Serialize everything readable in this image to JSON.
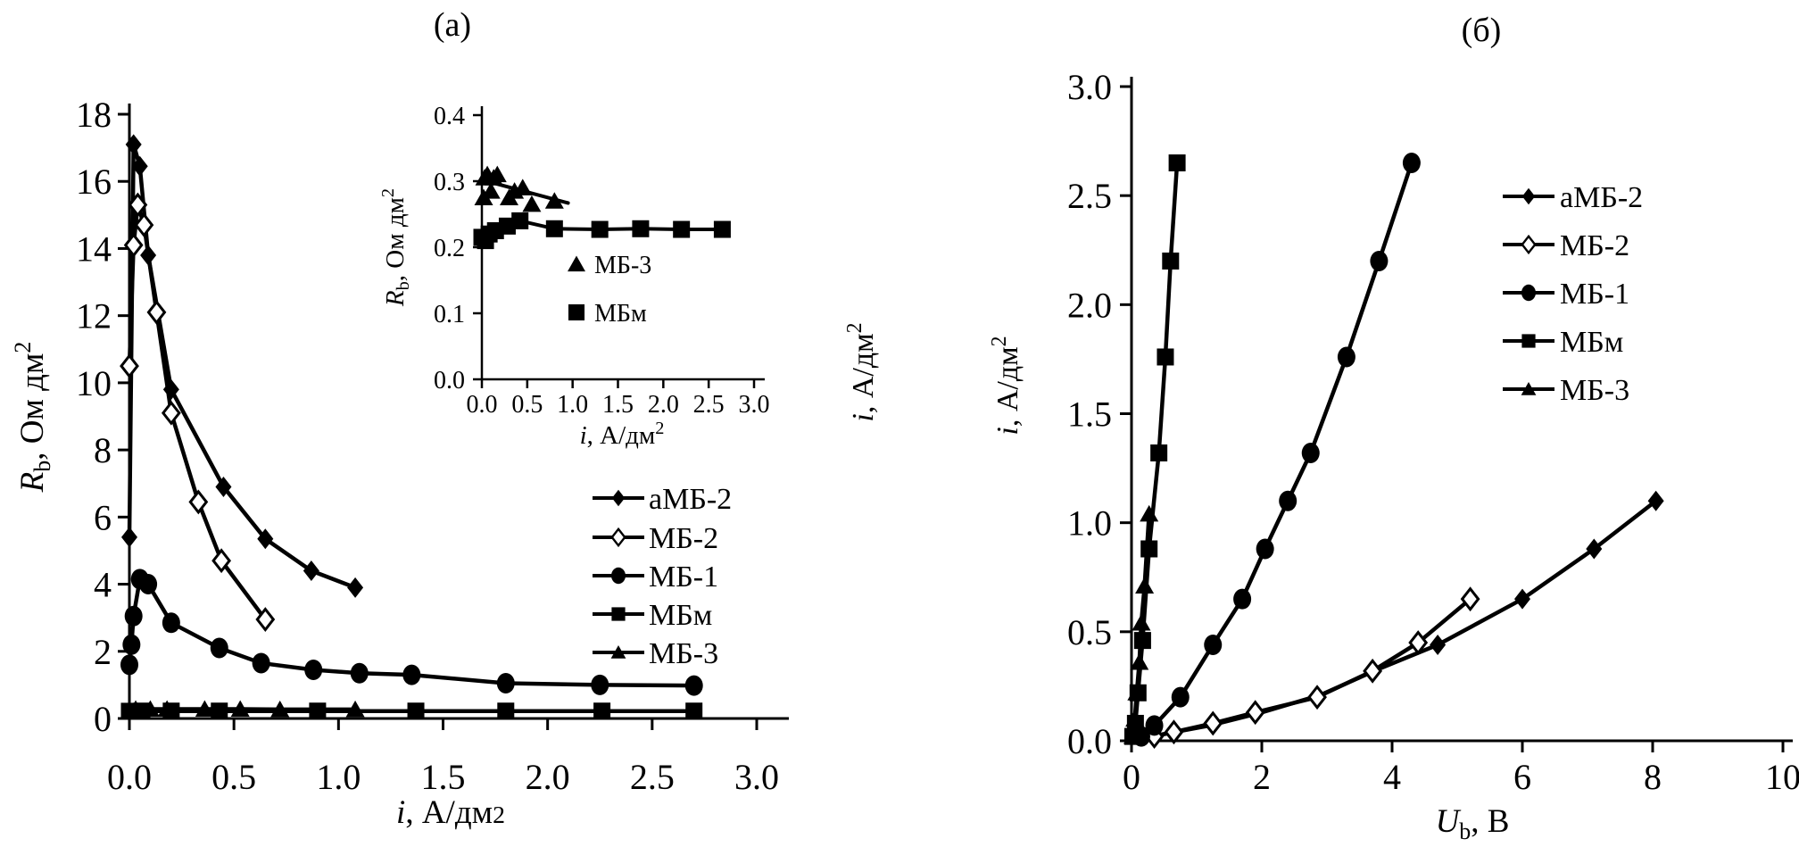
{
  "figure": {
    "panel_a_title": "(a)",
    "panel_b_title": "(б)",
    "background": "#ffffff",
    "ink_color": "#000000"
  },
  "chart_data": [
    {
      "id": "a-main",
      "type": "line",
      "xlabel_tokens": [
        {
          "t": "i",
          "s": "i"
        },
        {
          "t": ", А/дм"
        },
        {
          "t": "2",
          "s": "small"
        }
      ],
      "ylabel_tokens": [
        {
          "t": "R",
          "s": "i"
        },
        {
          "t": "b",
          "s": "sub"
        },
        {
          "t": ", Ом дм"
        },
        {
          "t": "2",
          "s": "sup"
        }
      ],
      "xlim": [
        0,
        3.0
      ],
      "ylim": [
        0,
        18
      ],
      "xtick_values": [
        0.0,
        0.5,
        1.0,
        1.5,
        2.0,
        2.5,
        3.0
      ],
      "xtick_labels": [
        "0.0",
        "0.5",
        "1.0",
        "1.5",
        "2.0",
        "2.5",
        "3.0"
      ],
      "ytick_values": [
        0,
        2,
        4,
        6,
        8,
        10,
        12,
        14,
        16,
        18
      ],
      "ytick_labels": [
        "0",
        "2",
        "4",
        "6",
        "8",
        "10",
        "12",
        "14",
        "16",
        "18"
      ],
      "grid": false,
      "legend": {
        "style": "line-marker",
        "items": [
          {
            "label": "аМБ-2",
            "marker": "diamond-filled"
          },
          {
            "label": "МБ-2",
            "marker": "diamond-open"
          },
          {
            "label": "МБ-1",
            "marker": "circle-filled"
          },
          {
            "label": "МБм",
            "marker": "square-filled"
          },
          {
            "label": "МБ-3",
            "marker": "triangle-filled"
          }
        ]
      },
      "series": [
        {
          "name": "аМБ-2",
          "marker": "diamond-filled",
          "points": [
            [
              0,
              5.4
            ],
            [
              0.02,
              17.1
            ],
            [
              0.05,
              16.45
            ],
            [
              0.09,
              13.8
            ],
            [
              0.2,
              9.8
            ],
            [
              0.45,
              6.9
            ],
            [
              0.65,
              5.35
            ],
            [
              0.87,
              4.4
            ],
            [
              1.08,
              3.9
            ]
          ]
        },
        {
          "name": "МБ-2",
          "marker": "diamond-open",
          "points": [
            [
              0,
              10.5
            ],
            [
              0.02,
              14.1
            ],
            [
              0.04,
              15.3
            ],
            [
              0.07,
              14.7
            ],
            [
              0.13,
              12.1
            ],
            [
              0.2,
              9.1
            ],
            [
              0.33,
              6.45
            ],
            [
              0.44,
              4.7
            ],
            [
              0.65,
              2.95
            ]
          ]
        },
        {
          "name": "МБ-1",
          "marker": "circle-filled",
          "points": [
            [
              0,
              1.6
            ],
            [
              0.01,
              2.2
            ],
            [
              0.02,
              3.05
            ],
            [
              0.05,
              4.15
            ],
            [
              0.09,
              4.0
            ],
            [
              0.2,
              2.85
            ],
            [
              0.43,
              2.1
            ],
            [
              0.63,
              1.65
            ],
            [
              0.88,
              1.45
            ],
            [
              1.1,
              1.35
            ],
            [
              1.35,
              1.3
            ],
            [
              1.8,
              1.05
            ],
            [
              2.25,
              1.0
            ],
            [
              2.7,
              0.98
            ]
          ]
        },
        {
          "name": "МБм",
          "marker": "square-filled",
          "points": [
            [
              0,
              0.215
            ],
            [
              0.06,
              0.22
            ],
            [
              0.2,
              0.22
            ],
            [
              0.43,
              0.22
            ],
            [
              0.9,
              0.22
            ],
            [
              1.37,
              0.22
            ],
            [
              1.8,
              0.22
            ],
            [
              2.26,
              0.22
            ],
            [
              2.7,
              0.22
            ]
          ]
        },
        {
          "name": "МБ-3",
          "marker": "triangle-filled",
          "points": [
            [
              0.03,
              0.28
            ],
            [
              0.1,
              0.28
            ],
            [
              0.18,
              0.28
            ],
            [
              0.36,
              0.28
            ],
            [
              0.53,
              0.28
            ],
            [
              0.72,
              0.27
            ],
            [
              1.08,
              0.27
            ]
          ]
        }
      ]
    },
    {
      "id": "a-inset",
      "type": "line",
      "xlabel_tokens": [
        {
          "t": "i",
          "s": "i"
        },
        {
          "t": ", А/дм"
        },
        {
          "t": "2",
          "s": "sup"
        }
      ],
      "ylabel_tokens": [
        {
          "t": "R",
          "s": "i"
        },
        {
          "t": "b",
          "s": "sub"
        },
        {
          "t": ", Ом дм"
        },
        {
          "t": "2",
          "s": "sup"
        }
      ],
      "xlim": [
        0,
        3.0
      ],
      "ylim": [
        0,
        0.4
      ],
      "xtick_values": [
        0.0,
        0.5,
        1.0,
        1.5,
        2.0,
        2.5,
        3.0
      ],
      "xtick_labels": [
        "0.0",
        "0.5",
        "1.0",
        "1.5",
        "2.0",
        "2.5",
        "3.0"
      ],
      "ytick_values": [
        0.0,
        0.1,
        0.2,
        0.3,
        0.4
      ],
      "ytick_labels": [
        "0.0",
        "0.1",
        "0.2",
        "0.3",
        "0.4"
      ],
      "grid": false,
      "legend": {
        "style": "marker-only",
        "items": [
          {
            "label": "МБ-3",
            "marker": "triangle-filled"
          },
          {
            "label": "МБм",
            "marker": "square-filled"
          }
        ]
      },
      "series": [
        {
          "name": "МБ-3",
          "marker": "triangle-filled",
          "line": false,
          "points": [
            [
              0.02,
              0.275
            ],
            [
              0.03,
              0.305
            ],
            [
              0.06,
              0.31
            ],
            [
              0.1,
              0.285
            ],
            [
              0.13,
              0.305
            ],
            [
              0.17,
              0.31
            ],
            [
              0.3,
              0.275
            ],
            [
              0.36,
              0.285
            ],
            [
              0.45,
              0.29
            ],
            [
              0.55,
              0.265
            ],
            [
              0.8,
              0.27
            ]
          ]
        },
        {
          "name": "МБ-3 линия тренда",
          "marker": "none",
          "in_legend": false,
          "points": [
            [
              0,
              0.302
            ],
            [
              0.95,
              0.267
            ]
          ]
        },
        {
          "name": "МБм",
          "marker": "square-filled",
          "points": [
            [
              0,
              0.215
            ],
            [
              0.04,
              0.21
            ],
            [
              0.08,
              0.22
            ],
            [
              0.15,
              0.225
            ],
            [
              0.28,
              0.232
            ],
            [
              0.42,
              0.24
            ],
            [
              0.8,
              0.228
            ],
            [
              1.3,
              0.227
            ],
            [
              1.75,
              0.228
            ],
            [
              2.2,
              0.227
            ],
            [
              2.65,
              0.227
            ]
          ]
        }
      ]
    },
    {
      "id": "b",
      "type": "line",
      "xlabel_tokens": [
        {
          "t": "U",
          "s": "i"
        },
        {
          "t": "b",
          "s": "sub"
        },
        {
          "t": ", В"
        }
      ],
      "ylabel_tokens": [
        {
          "t": "i",
          "s": "i"
        },
        {
          "t": ", А/дм"
        },
        {
          "t": "2",
          "s": "sup"
        }
      ],
      "ylabel_repeated": 2,
      "xlim": [
        0,
        10
      ],
      "ylim": [
        0,
        3.0
      ],
      "xtick_values": [
        0,
        2,
        4,
        6,
        8,
        10
      ],
      "xtick_labels": [
        "0",
        "2",
        "4",
        "6",
        "8",
        "10"
      ],
      "ytick_values": [
        0.0,
        0.5,
        1.0,
        1.5,
        2.0,
        2.5,
        3.0
      ],
      "ytick_labels": [
        "0.0",
        "0.5",
        "1.0",
        "1.5",
        "2.0",
        "2.5",
        "3.0"
      ],
      "grid": false,
      "legend": {
        "style": "line-marker",
        "items": [
          {
            "label": "аМБ-2",
            "marker": "diamond-filled"
          },
          {
            "label": "МБ-2",
            "marker": "diamond-open"
          },
          {
            "label": "МБ-1",
            "marker": "circle-filled"
          },
          {
            "label": "МБм",
            "marker": "square-filled"
          },
          {
            "label": "МБ-3",
            "marker": "triangle-filled"
          }
        ]
      },
      "series": [
        {
          "name": "аМБ-2",
          "marker": "diamond-filled",
          "line_points": [
            [
              0.3,
              0.02
            ],
            [
              1.2,
              0.07
            ],
            [
              2.0,
              0.13
            ],
            [
              2.9,
              0.21
            ],
            [
              3.8,
              0.33
            ],
            [
              4.7,
              0.44
            ],
            [
              6.0,
              0.65
            ],
            [
              7.1,
              0.88
            ],
            [
              8.05,
              1.1
            ]
          ],
          "points": [
            [
              4.7,
              0.44
            ],
            [
              6.0,
              0.65
            ],
            [
              7.1,
              0.88
            ],
            [
              8.05,
              1.1
            ]
          ]
        },
        {
          "name": "МБ-2",
          "marker": "diamond-open",
          "points": [
            [
              0.35,
              0.02
            ],
            [
              0.65,
              0.04
            ],
            [
              1.25,
              0.08
            ],
            [
              1.9,
              0.13
            ],
            [
              2.85,
              0.2
            ],
            [
              3.7,
              0.32
            ],
            [
              4.4,
              0.45
            ],
            [
              5.2,
              0.65
            ]
          ]
        },
        {
          "name": "МБ-1",
          "marker": "circle-filled",
          "points": [
            [
              0.15,
              0.02
            ],
            [
              0.35,
              0.07
            ],
            [
              0.75,
              0.2
            ],
            [
              1.25,
              0.44
            ],
            [
              1.7,
              0.65
            ],
            [
              2.05,
              0.88
            ],
            [
              2.4,
              1.1
            ],
            [
              2.75,
              1.32
            ],
            [
              3.3,
              1.76
            ],
            [
              3.8,
              2.2
            ],
            [
              4.3,
              2.65
            ]
          ]
        },
        {
          "name": "МБм",
          "marker": "square-filled",
          "points": [
            [
              0.02,
              0.02
            ],
            [
              0.06,
              0.08
            ],
            [
              0.1,
              0.22
            ],
            [
              0.17,
              0.46
            ],
            [
              0.27,
              0.88
            ],
            [
              0.42,
              1.32
            ],
            [
              0.52,
              1.76
            ],
            [
              0.6,
              2.2
            ],
            [
              0.7,
              2.65
            ]
          ]
        },
        {
          "name": "МБ-3",
          "marker": "triangle-filled",
          "points": [
            [
              0.02,
              0.02
            ],
            [
              0.05,
              0.1
            ],
            [
              0.08,
              0.22
            ],
            [
              0.12,
              0.36
            ],
            [
              0.15,
              0.54
            ],
            [
              0.2,
              0.71
            ],
            [
              0.27,
              1.04
            ]
          ]
        }
      ]
    }
  ]
}
